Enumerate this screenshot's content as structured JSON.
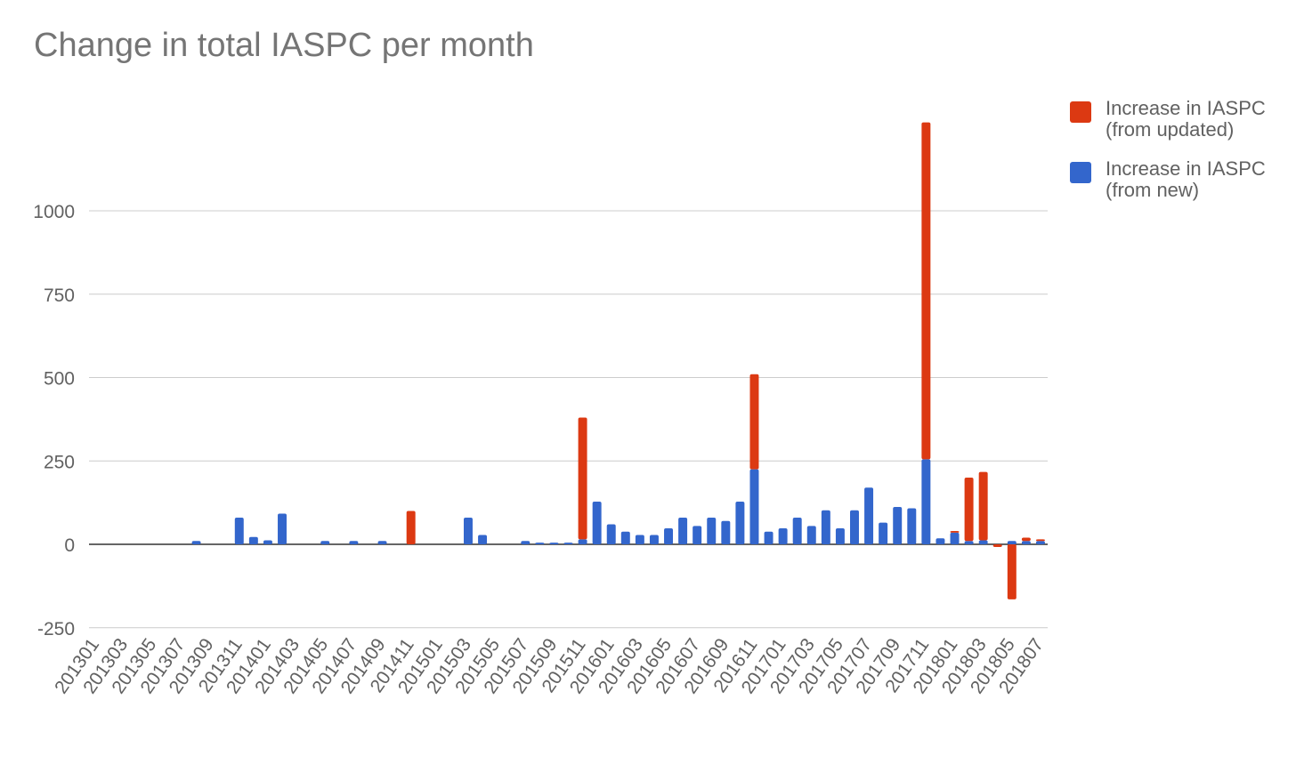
{
  "chart_data": {
    "type": "bar",
    "stacked": true,
    "title": "Change in total IASPC per month",
    "xlabel": "",
    "ylabel": "",
    "ylim": [
      -250,
      1350
    ],
    "yticks": [
      -250,
      0,
      250,
      500,
      750,
      1000
    ],
    "categories": [
      "201301",
      "201302",
      "201303",
      "201304",
      "201305",
      "201306",
      "201307",
      "201308",
      "201309",
      "201310",
      "201311",
      "201312",
      "201401",
      "201402",
      "201403",
      "201404",
      "201405",
      "201406",
      "201407",
      "201408",
      "201409",
      "201410",
      "201411",
      "201412",
      "201501",
      "201502",
      "201503",
      "201504",
      "201505",
      "201506",
      "201507",
      "201508",
      "201509",
      "201510",
      "201511",
      "201512",
      "201601",
      "201602",
      "201603",
      "201604",
      "201605",
      "201606",
      "201607",
      "201608",
      "201609",
      "201610",
      "201611",
      "201612",
      "201701",
      "201702",
      "201703",
      "201704",
      "201705",
      "201706",
      "201707",
      "201708",
      "201709",
      "201710",
      "201711",
      "201712",
      "201801",
      "201802",
      "201803",
      "201804",
      "201805",
      "201806",
      "201807"
    ],
    "tick_labels": [
      "201301",
      "201303",
      "201305",
      "201307",
      "201309",
      "201311",
      "201401",
      "201403",
      "201405",
      "201407",
      "201409",
      "201411",
      "201501",
      "201503",
      "201505",
      "201507",
      "201509",
      "201511",
      "201601",
      "201603",
      "201605",
      "201607",
      "201609",
      "201611",
      "201701",
      "201703",
      "201705",
      "201707",
      "201709",
      "201711",
      "201801",
      "201803",
      "201805",
      "201807"
    ],
    "series": [
      {
        "name": "Increase in IASPC (from new)",
        "color": "#3366cc",
        "values": [
          0,
          0,
          0,
          0,
          0,
          0,
          0,
          10,
          0,
          0,
          80,
          22,
          12,
          92,
          0,
          0,
          10,
          0,
          10,
          0,
          10,
          0,
          0,
          0,
          0,
          0,
          80,
          28,
          0,
          0,
          10,
          5,
          5,
          5,
          15,
          128,
          60,
          38,
          28,
          28,
          48,
          80,
          55,
          80,
          70,
          128,
          225,
          38,
          48,
          80,
          55,
          102,
          48,
          102,
          170,
          65,
          112,
          108,
          255,
          18,
          35,
          10,
          12,
          0,
          10,
          10,
          10
        ]
      },
      {
        "name": "Increase in IASPC (from updated)",
        "color": "#dc3912",
        "values": [
          0,
          0,
          0,
          0,
          0,
          0,
          0,
          0,
          0,
          0,
          0,
          0,
          0,
          0,
          0,
          0,
          0,
          0,
          0,
          0,
          0,
          0,
          100,
          0,
          0,
          0,
          0,
          0,
          0,
          0,
          0,
          0,
          0,
          0,
          365,
          0,
          0,
          0,
          0,
          0,
          0,
          0,
          0,
          0,
          0,
          0,
          285,
          0,
          0,
          0,
          0,
          0,
          0,
          0,
          0,
          0,
          0,
          0,
          1010,
          0,
          5,
          190,
          205,
          -8,
          -165,
          10,
          5
        ]
      }
    ],
    "legend_position": "right"
  }
}
